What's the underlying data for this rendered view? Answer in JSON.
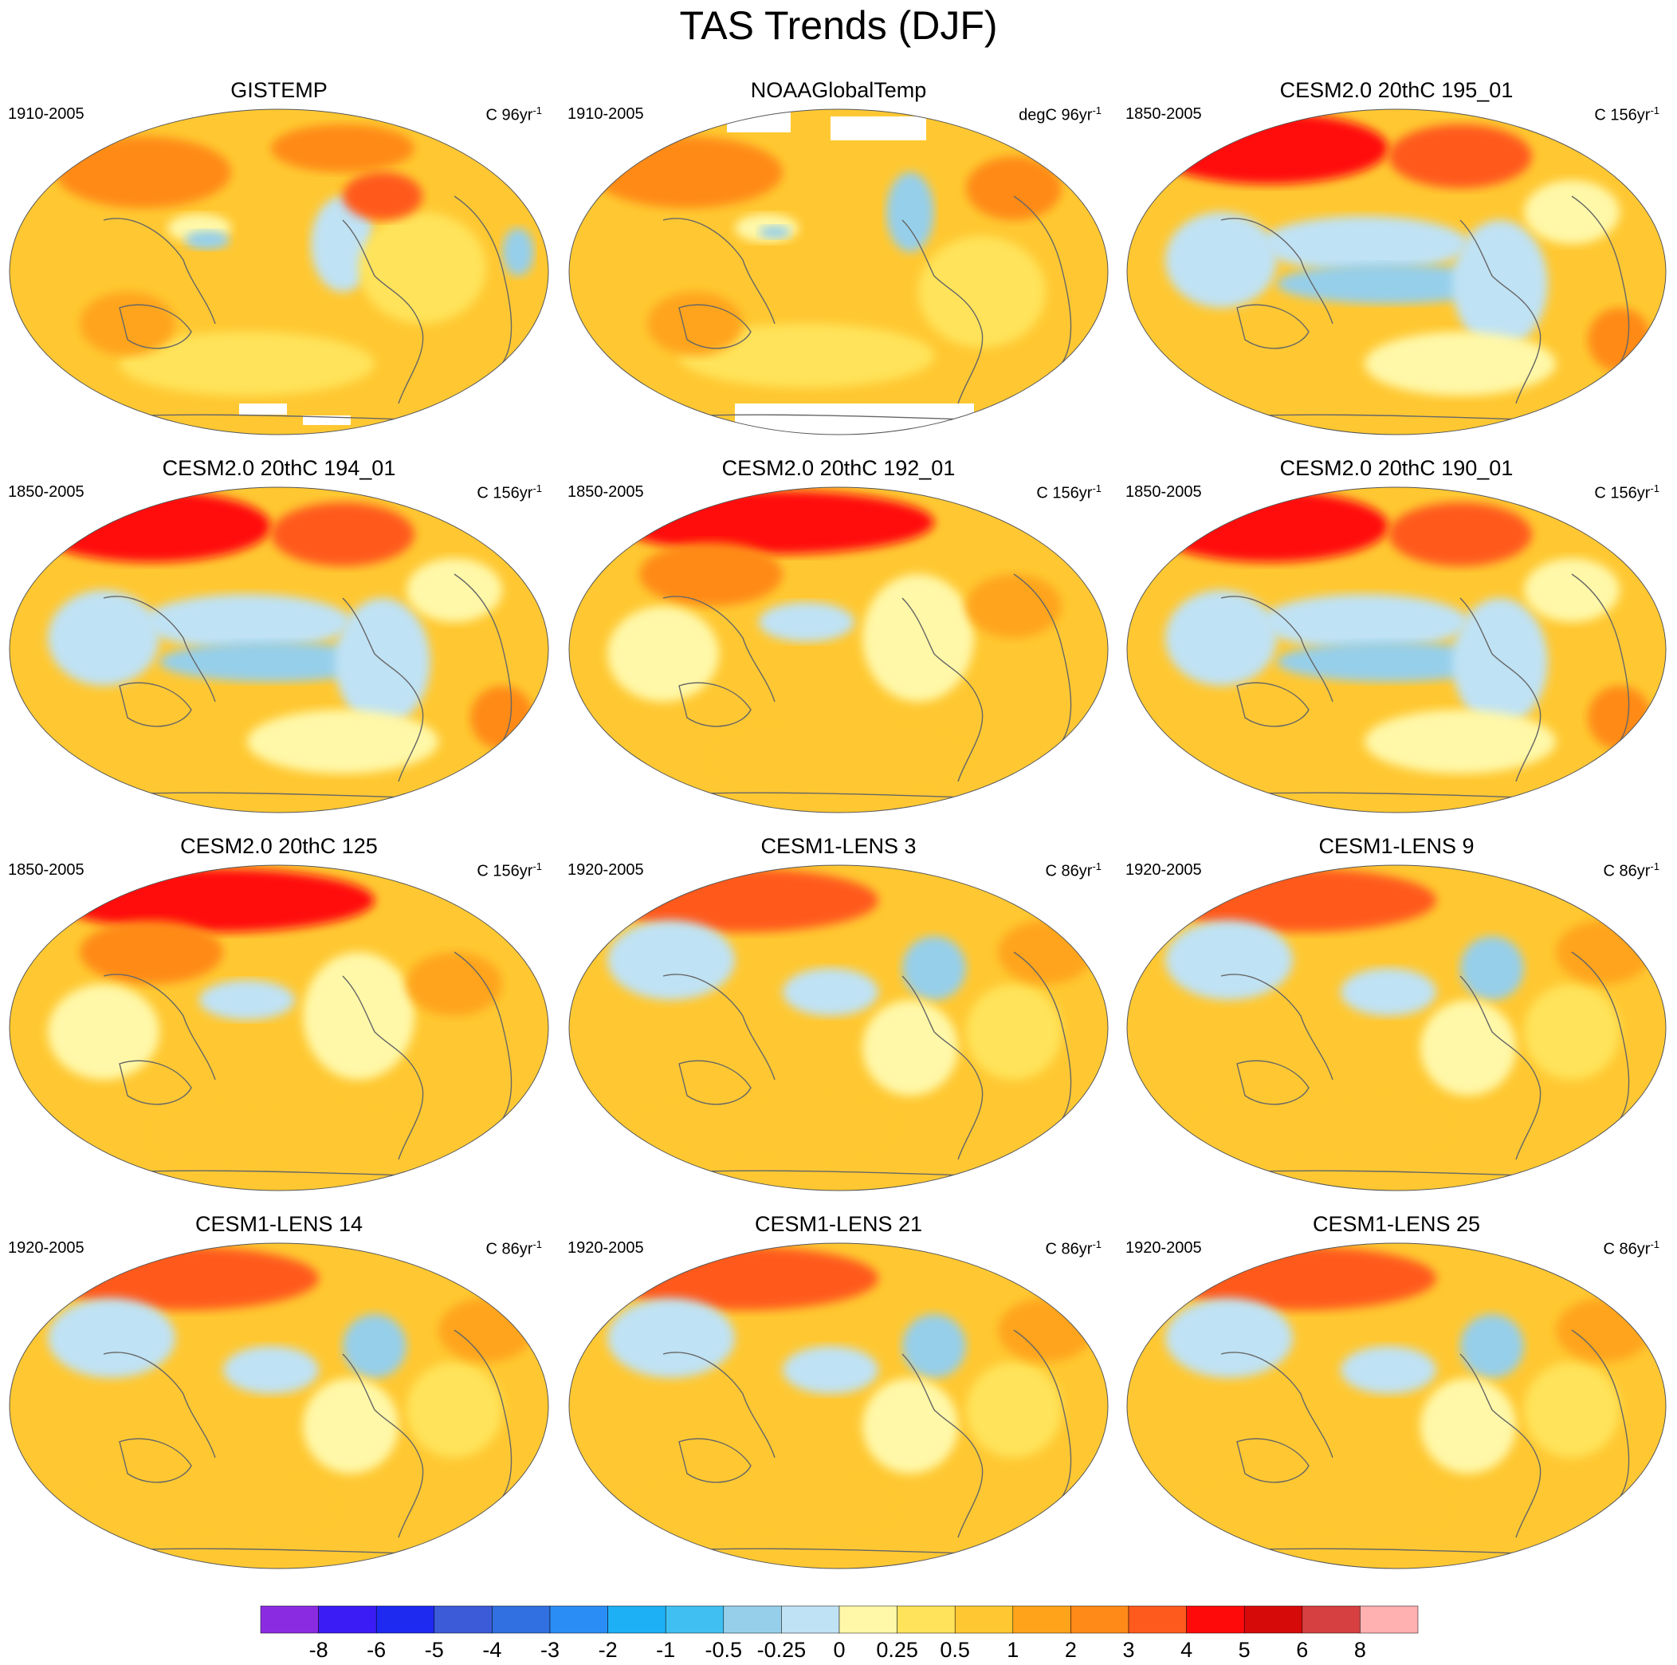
{
  "title": "TAS Trends (DJF)",
  "panels": [
    {
      "title": "GISTEMP",
      "period": "1910-2005",
      "units": "C 96yr",
      "units_exp": "-1",
      "variant": "gistemp"
    },
    {
      "title": "NOAAGlobalTemp",
      "period": "1910-2005",
      "units": "degC 96yr",
      "units_exp": "-1",
      "variant": "noaa"
    },
    {
      "title": "CESM2.0 20thC 195_01",
      "period": "1850-2005",
      "units": "C 156yr",
      "units_exp": "-1",
      "variant": "model-cool"
    },
    {
      "title": "CESM2.0 20thC 194_01",
      "period": "1850-2005",
      "units": "C 156yr",
      "units_exp": "-1",
      "variant": "model-cool"
    },
    {
      "title": "CESM2.0 20thC 192_01",
      "period": "1850-2005",
      "units": "C 156yr",
      "units_exp": "-1",
      "variant": "model-warm"
    },
    {
      "title": "CESM2.0 20thC 190_01",
      "period": "1850-2005",
      "units": "C 156yr",
      "units_exp": "-1",
      "variant": "model-cool"
    },
    {
      "title": "CESM2.0 20thC 125",
      "period": "1850-2005",
      "units": "C 156yr",
      "units_exp": "-1",
      "variant": "model-warm"
    },
    {
      "title": "CESM1-LENS 3",
      "period": "1920-2005",
      "units": "C 86yr",
      "units_exp": "-1",
      "variant": "lens"
    },
    {
      "title": "CESM1-LENS 9",
      "period": "1920-2005",
      "units": "C 86yr",
      "units_exp": "-1",
      "variant": "lens"
    },
    {
      "title": "CESM1-LENS 14",
      "period": "1920-2005",
      "units": "C 86yr",
      "units_exp": "-1",
      "variant": "lens"
    },
    {
      "title": "CESM1-LENS 21",
      "period": "1920-2005",
      "units": "C 86yr",
      "units_exp": "-1",
      "variant": "lens"
    },
    {
      "title": "CESM1-LENS 25",
      "period": "1920-2005",
      "units": "C 86yr",
      "units_exp": "-1",
      "variant": "lens"
    }
  ],
  "colorbar": {
    "colors": [
      "#8A2BE2",
      "#3B1CF5",
      "#1E2AF0",
      "#3C5BD8",
      "#3070E0",
      "#2A8DF5",
      "#1EB0F5",
      "#40C0F2",
      "#96CFEA",
      "#BFE2F4",
      "#FFF8A8",
      "#FFE35A",
      "#FFC832",
      "#FFA41A",
      "#FF8A18",
      "#FF5A1E",
      "#FF0A0A",
      "#D70A0A",
      "#D64040",
      "#FFB0B0"
    ],
    "labels": [
      "-8",
      "-6",
      "-5",
      "-4",
      "-3",
      "-2",
      "-1",
      "-0.5",
      "-0.25",
      "0",
      "0.25",
      "0.5",
      "1",
      "2",
      "3",
      "4",
      "5",
      "6",
      "8"
    ]
  }
}
